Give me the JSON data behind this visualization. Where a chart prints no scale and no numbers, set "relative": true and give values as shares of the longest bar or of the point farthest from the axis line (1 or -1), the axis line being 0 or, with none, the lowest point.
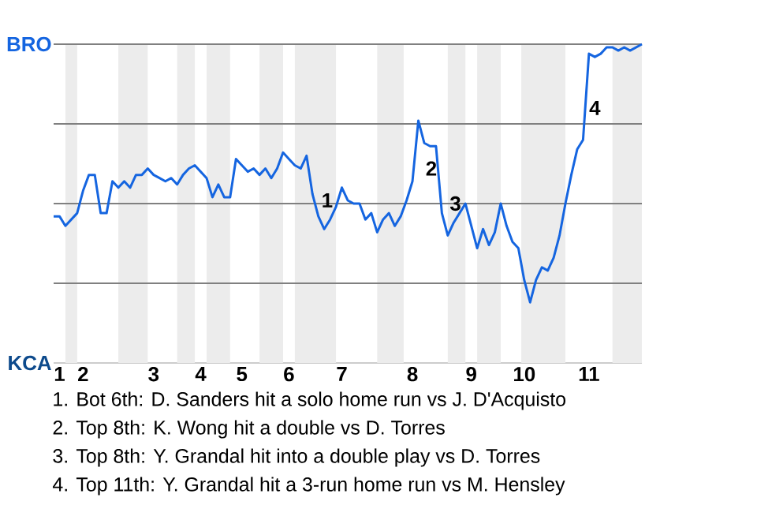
{
  "chart_data": {
    "type": "line",
    "relative": true,
    "categories": [
      null,
      "1",
      null,
      null,
      null,
      "2",
      null,
      null,
      null,
      null,
      null,
      null,
      null,
      null,
      null,
      null,
      null,
      "3",
      null,
      null,
      null,
      null,
      null,
      null,
      null,
      "4",
      null,
      null,
      null,
      null,
      null,
      null,
      "5",
      null,
      null,
      null,
      null,
      null,
      null,
      null,
      "6",
      null,
      null,
      null,
      null,
      null,
      null,
      null,
      null,
      "7",
      null,
      null,
      null,
      null,
      null,
      null,
      null,
      null,
      null,
      null,
      null,
      "8",
      null,
      null,
      null,
      null,
      null,
      null,
      null,
      null,
      null,
      "9",
      null,
      null,
      null,
      null,
      null,
      null,
      null,
      null,
      "10",
      null,
      null,
      null,
      null,
      null,
      null,
      null,
      null,
      null,
      null,
      "11",
      null,
      null,
      null,
      null,
      null,
      null,
      null,
      null,
      null
    ],
    "series": [
      {
        "color": "#1565e0",
        "values": [
          0.46,
          0.46,
          0.43,
          0.45,
          0.47,
          0.54,
          0.59,
          0.59,
          0.47,
          0.47,
          0.57,
          0.55,
          0.57,
          0.55,
          0.59,
          0.59,
          0.61,
          0.59,
          0.58,
          0.57,
          0.58,
          0.56,
          0.59,
          0.61,
          0.62,
          0.6,
          0.58,
          0.52,
          0.56,
          0.52,
          0.52,
          0.64,
          0.62,
          0.6,
          0.61,
          0.59,
          0.61,
          0.58,
          0.61,
          0.66,
          0.64,
          0.62,
          0.61,
          0.65,
          0.53,
          0.46,
          0.42,
          0.45,
          0.49,
          0.55,
          0.51,
          0.5,
          0.5,
          0.45,
          0.47,
          0.41,
          0.45,
          0.47,
          0.43,
          0.46,
          0.51,
          0.57,
          0.76,
          0.69,
          0.68,
          0.68,
          0.47,
          0.4,
          0.44,
          0.47,
          0.5,
          0.43,
          0.36,
          0.42,
          0.37,
          0.41,
          0.5,
          0.43,
          0.38,
          0.36,
          0.26,
          0.19,
          0.26,
          0.3,
          0.29,
          0.33,
          0.4,
          0.5,
          0.59,
          0.67,
          0.7,
          0.97,
          0.96,
          0.97,
          0.99,
          0.99,
          0.98,
          0.99,
          0.98,
          0.99,
          1.0
        ],
        "line_style": "solid"
      }
    ],
    "ref_lines": [
      {
        "axis": "y",
        "value": 0.25,
        "color": "#808080"
      },
      {
        "axis": "y",
        "value": 0.5,
        "color": "#808080"
      },
      {
        "axis": "y",
        "value": 0.75,
        "color": "#808080"
      },
      {
        "axis": "y",
        "value": 1,
        "color": "#808080"
      }
    ],
    "annotations": [
      "BRO",
      "KCA",
      "1",
      "2",
      "3",
      "4",
      "1. Bot 6th: D. Sanders hit a solo home run vs J. D'Acquisto",
      "2. Top 8th: K. Wong hit a double vs D. Torres",
      "3. Top 8th: Y. Grandal hit into a double play vs D. Torres",
      "4. Top 11th: Y. Grandal hit a 3-run home run vs M. Hensley"
    ]
  }
}
